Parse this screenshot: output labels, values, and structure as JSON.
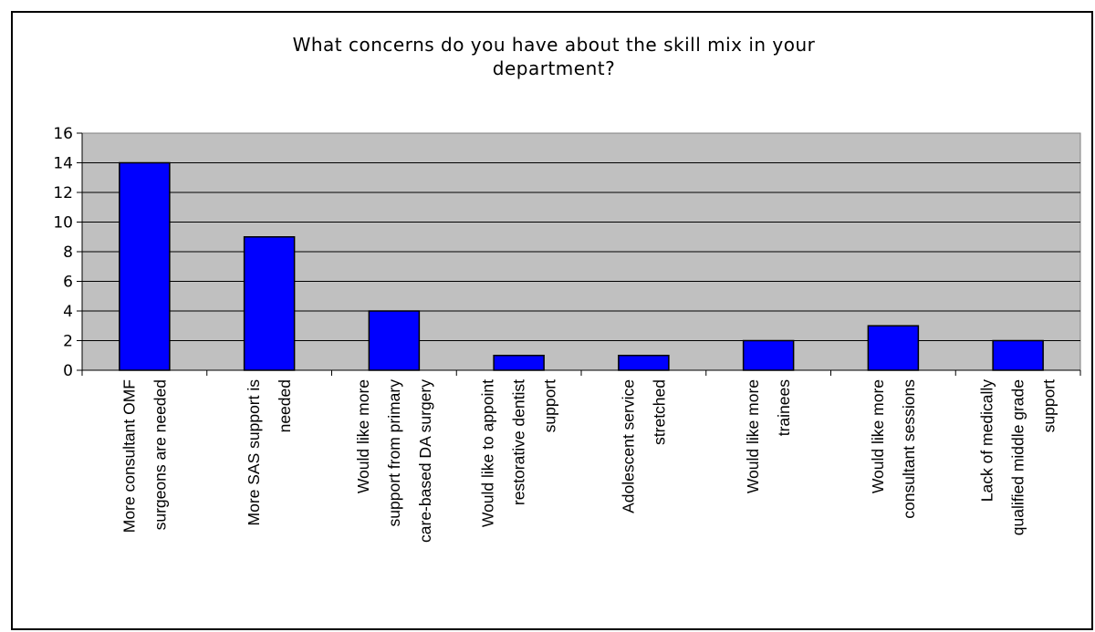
{
  "chart_data": {
    "type": "bar",
    "title_lines": [
      "What concerns do you have about the skill mix in your",
      "department?"
    ],
    "categories": [
      [
        "More consultant OMF",
        "surgeons are needed"
      ],
      [
        "More SAS support is",
        "needed"
      ],
      [
        "Would like more",
        "support from primary",
        "care-based DA surgery"
      ],
      [
        "Would like to appoint",
        "restorative dentist",
        "support"
      ],
      [
        "Adolescent service",
        "stretched"
      ],
      [
        "Would like more",
        "trainees"
      ],
      [
        "Would like more",
        "consultant sessions"
      ],
      [
        "Lack of medically",
        "qualified middle grade",
        "support"
      ]
    ],
    "values": [
      14,
      9,
      4,
      1,
      1,
      2,
      3,
      2
    ],
    "ylim": [
      0,
      16
    ],
    "yticks": [
      0,
      2,
      4,
      6,
      8,
      10,
      12,
      14,
      16
    ],
    "xlabel": "",
    "ylabel": "",
    "grid": true,
    "legend": false,
    "colors": {
      "bar": "#0000ff",
      "plot_bg": "#c0c0c0",
      "accent": "#6ab04c"
    }
  }
}
